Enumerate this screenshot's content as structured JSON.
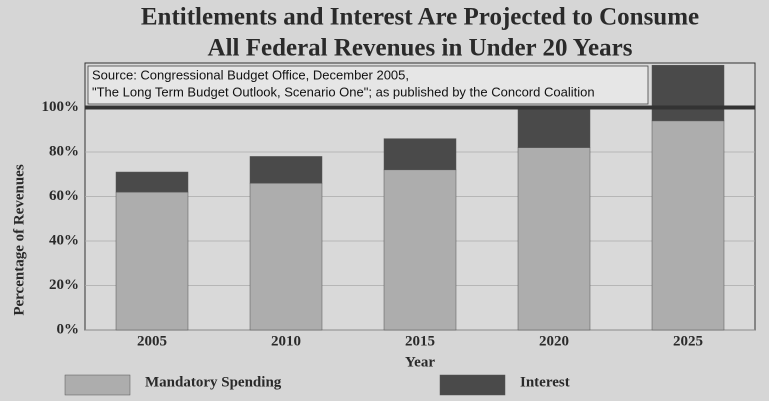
{
  "chart_data": {
    "type": "stacked_bar",
    "title": [
      "Entitlements and Interest Are Projected to Consume",
      "All Federal Revenues in Under 20 Years"
    ],
    "annotation": [
      "Source: Congressional Budget Office, December 2005,",
      "\"The Long Term Budget Outlook, Scenario One\"; as published by the Concord Coalition"
    ],
    "y_label": "Percentage of Revenues",
    "x_label": "Year",
    "categories": [
      "2005",
      "2010",
      "2015",
      "2020",
      "2025"
    ],
    "series": [
      {
        "name": "Mandatory Spending",
        "color": "#adadad",
        "values": [
          62,
          66,
          72,
          82,
          94
        ]
      },
      {
        "name": "Interest",
        "color": "#4a4a4a",
        "values": [
          9,
          12,
          14,
          18,
          25
        ]
      }
    ],
    "ylim": [
      0,
      120
    ],
    "yticks": [
      {
        "value": 0,
        "label": "0%"
      },
      {
        "value": 20,
        "label": "20%"
      },
      {
        "value": 40,
        "label": "40%"
      },
      {
        "value": 60,
        "label": "60%"
      },
      {
        "value": 80,
        "label": "80%"
      },
      {
        "value": 100,
        "label": "100%"
      }
    ],
    "reference_line": 100,
    "grid": true
  }
}
